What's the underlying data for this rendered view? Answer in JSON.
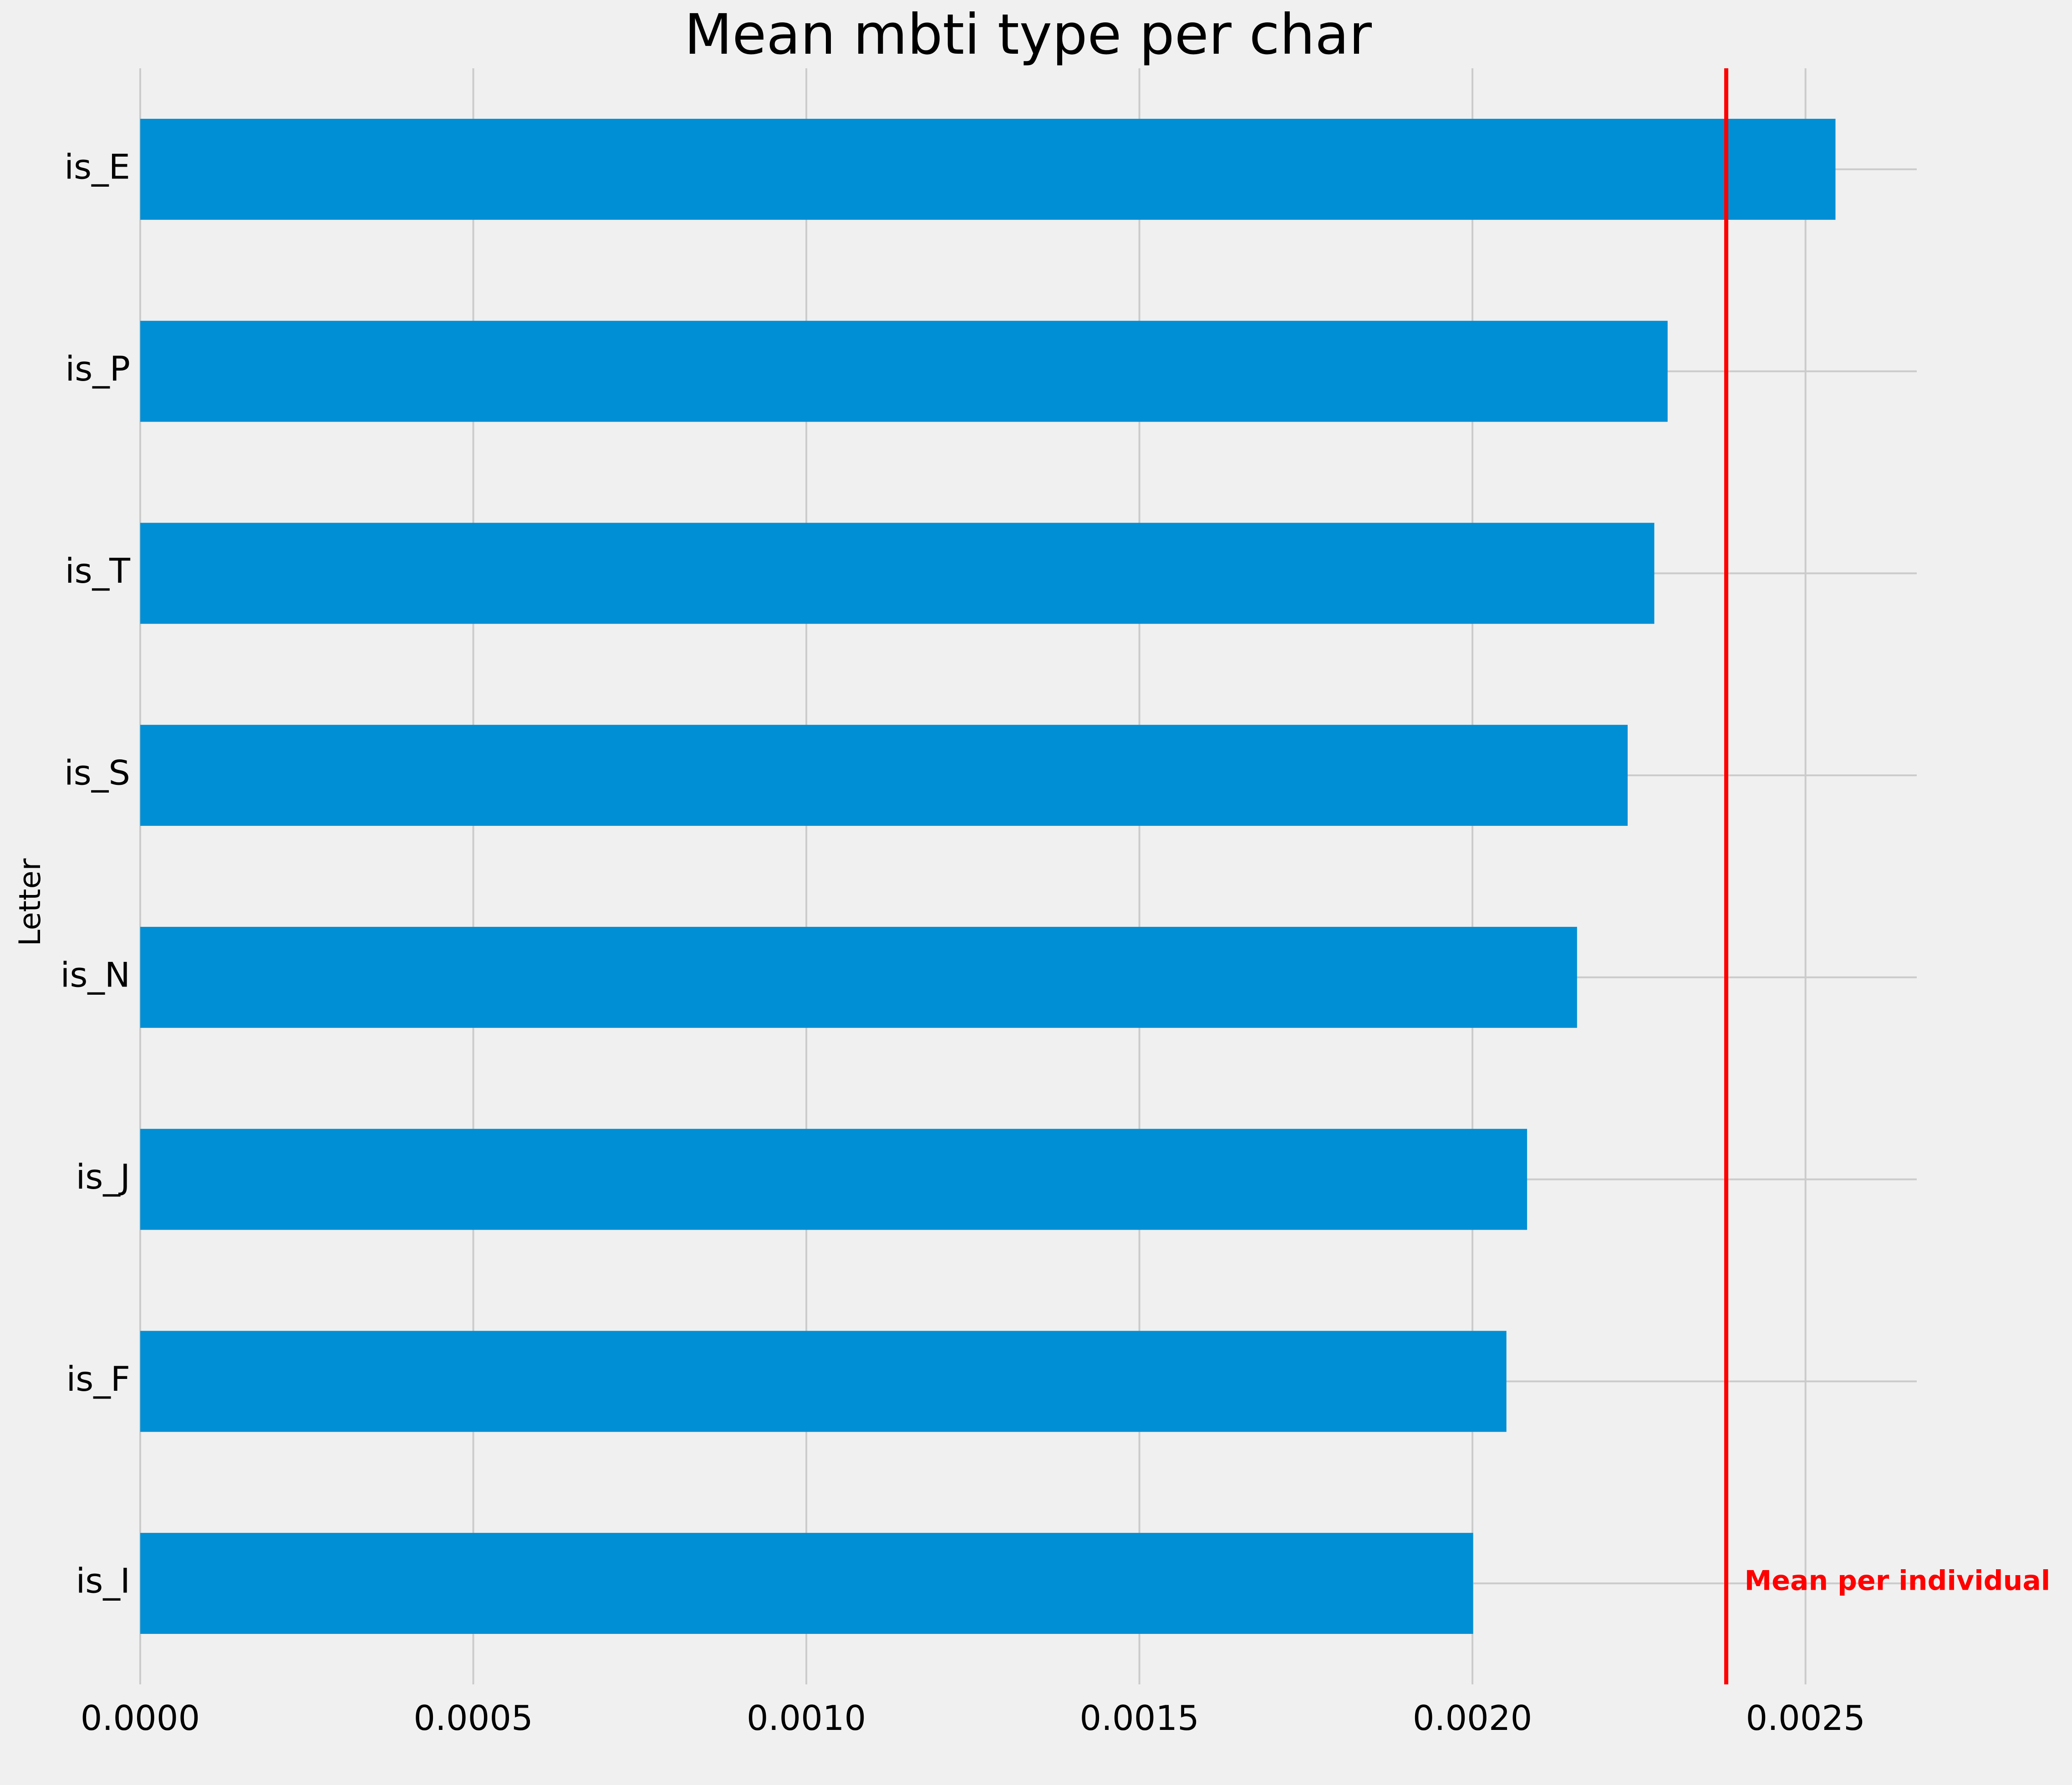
{
  "chart_data": {
    "type": "bar",
    "orientation": "horizontal",
    "title": "Mean mbti type per char",
    "xlabel": "",
    "ylabel": "Letter",
    "categories": [
      "is_E",
      "is_P",
      "is_T",
      "is_S",
      "is_N",
      "is_J",
      "is_F",
      "is_I"
    ],
    "values": [
      0.002545,
      0.002293,
      0.002273,
      0.002233,
      0.002157,
      0.002082,
      0.002051,
      0.002001
    ],
    "xlim": [
      0,
      0.002667
    ],
    "xticks": [
      "0.0000",
      "0.0005",
      "0.0010",
      "0.0015",
      "0.0020",
      "0.0025"
    ],
    "xtick_values": [
      0,
      0.0005,
      0.001,
      0.0015,
      0.002,
      0.0025
    ],
    "grid": true,
    "bar_color": "#008fd5",
    "reference_line": {
      "x": 0.002381,
      "color": "#ff0000",
      "label": "Mean per individual"
    }
  }
}
